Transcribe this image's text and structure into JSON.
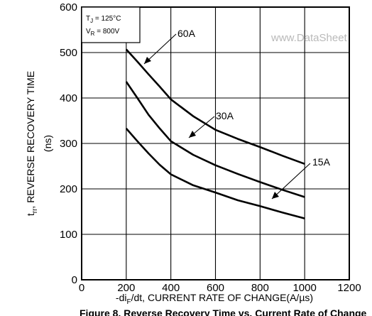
{
  "chart_data": {
    "type": "line",
    "xlabel_pre": "-di",
    "xlabel_sub": "F",
    "xlabel_post": "/dt, CURRENT RATE OF CHANGE(A/µs)",
    "ylabel_t": "t",
    "ylabel_sub": "rr",
    "ylabel_main": ", REVERSE RECOVERY TIME",
    "ylabel_unit": "(ns)",
    "xlim": [
      0,
      1200
    ],
    "ylim": [
      0,
      600
    ],
    "xticks": [
      "0",
      "200",
      "400",
      "600",
      "800",
      "1000",
      "1200"
    ],
    "yticks": [
      "0",
      "100",
      "200",
      "300",
      "400",
      "500",
      "600"
    ],
    "grid": true,
    "conditions": {
      "tj_pre": "T",
      "tj_sub": "J",
      "tj_post": " = 125°C",
      "vr_pre": "V",
      "vr_sub": "R",
      "vr_post": " = 800V"
    },
    "series": [
      {
        "name": "60A",
        "x": [
          200,
          250,
          300,
          350,
          400,
          500,
          600,
          700,
          800,
          900,
          1000
        ],
        "y": [
          507,
          480,
          452,
          425,
          397,
          360,
          330,
          310,
          292,
          273,
          255
        ]
      },
      {
        "name": "30A",
        "x": [
          200,
          250,
          300,
          350,
          400,
          500,
          600,
          700,
          800,
          900,
          1000
        ],
        "y": [
          436,
          400,
          363,
          333,
          305,
          275,
          252,
          233,
          215,
          198,
          182
        ]
      },
      {
        "name": "15A",
        "x": [
          200,
          250,
          300,
          350,
          400,
          500,
          600,
          700,
          800,
          900,
          1000
        ],
        "y": [
          333,
          305,
          278,
          253,
          232,
          208,
          192,
          175,
          162,
          148,
          135
        ]
      }
    ]
  },
  "watermark": "www.DataSheet",
  "caption": "Figure 8. Reverse Recovery Time vs. Current Rate of Change"
}
